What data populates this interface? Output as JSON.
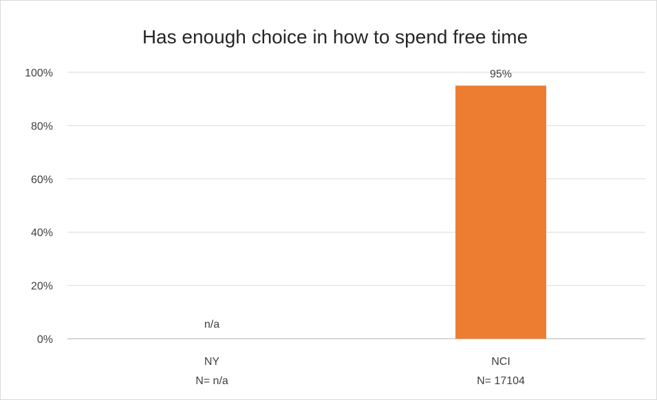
{
  "chart_data": {
    "type": "bar",
    "title": "Has enough choice in how to spend free time",
    "categories": [
      "NY",
      "NCI"
    ],
    "category_sublabels": [
      "N= n/a",
      "N= 17104"
    ],
    "values": [
      null,
      95
    ],
    "data_labels": [
      "n/a",
      "95%"
    ],
    "ylim": [
      0,
      100
    ],
    "yticks": [
      0,
      20,
      40,
      60,
      80,
      100
    ],
    "ytick_labels": [
      "0%",
      "20%",
      "40%",
      "60%",
      "80%",
      "100%"
    ],
    "bar_color": "#ED7D31",
    "grid": true,
    "legend": "none"
  }
}
